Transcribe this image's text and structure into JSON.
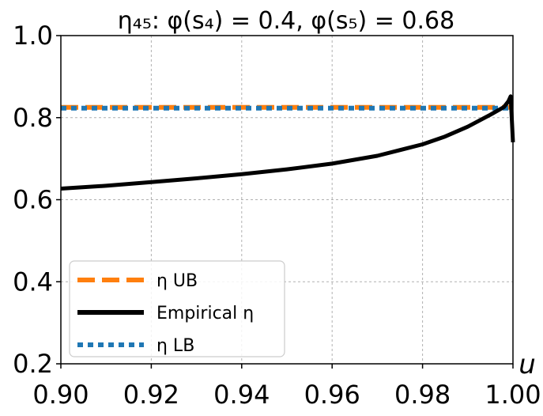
{
  "chart_data": {
    "type": "line",
    "title": "η₄₅: φ(s₄) = 0.4, φ(s₅) = 0.68",
    "xlabel": "u",
    "ylabel": "",
    "xlim": [
      0.9,
      1.0
    ],
    "ylim": [
      0.2,
      1.0
    ],
    "x_ticks": [
      "0.90",
      "0.92",
      "0.94",
      "0.96",
      "0.98",
      "1.00"
    ],
    "y_ticks": [
      "0.2",
      "0.4",
      "0.6",
      "0.8",
      "1.0"
    ],
    "grid": true,
    "legend_position": "lower-left",
    "series": [
      {
        "name": "η UB",
        "style": "dashed",
        "color": "#ff7f0e",
        "x": [
          0.9,
          1.0
        ],
        "y": [
          0.825,
          0.825
        ]
      },
      {
        "name": "Empirical η",
        "style": "solid",
        "color": "#000000",
        "x": [
          0.9,
          0.91,
          0.92,
          0.93,
          0.94,
          0.95,
          0.96,
          0.97,
          0.98,
          0.985,
          0.99,
          0.995,
          0.998,
          0.999,
          0.9995,
          1.0
        ],
        "y": [
          0.627,
          0.634,
          0.643,
          0.652,
          0.662,
          0.674,
          0.688,
          0.707,
          0.735,
          0.754,
          0.778,
          0.807,
          0.826,
          0.84,
          0.852,
          0.74
        ]
      },
      {
        "name": "η LB",
        "style": "dotted",
        "color": "#1f77b4",
        "x": [
          0.9,
          1.0
        ],
        "y": [
          0.823,
          0.823
        ]
      }
    ]
  }
}
